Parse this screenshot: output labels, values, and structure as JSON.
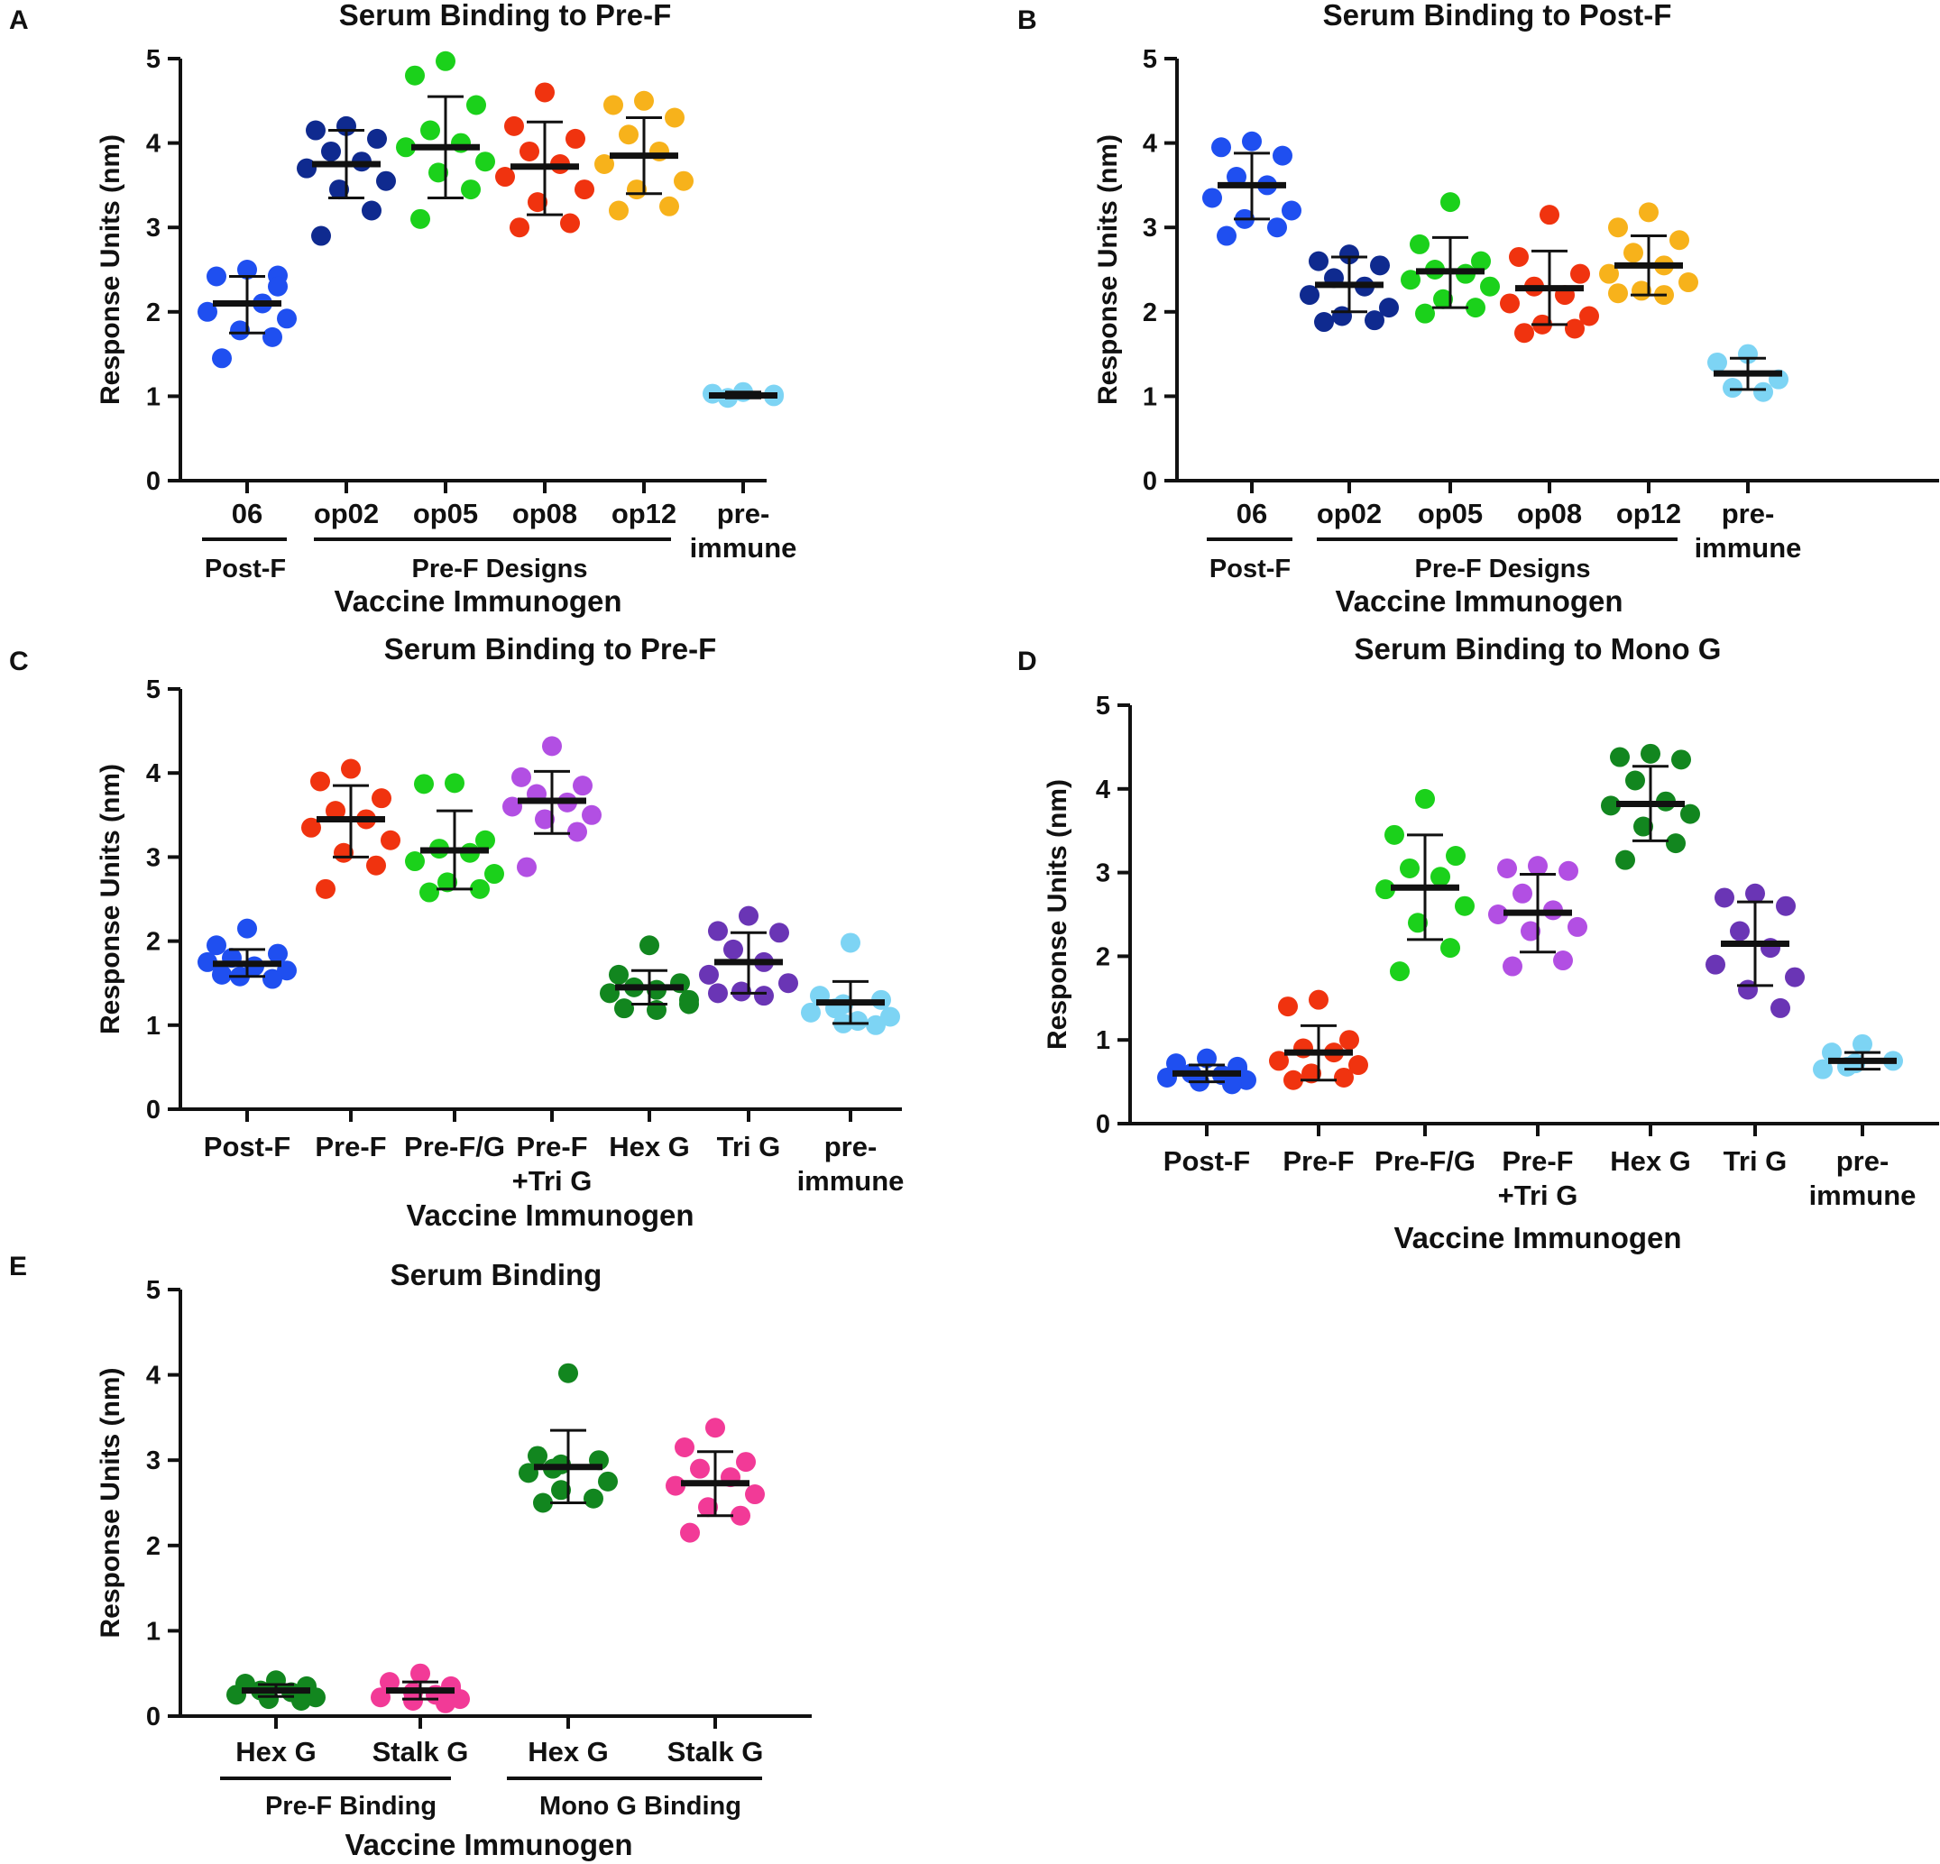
{
  "figure_axis_title": "Vaccine Immunogen",
  "colors": {
    "blue": "#1f4ff0",
    "navy": "#0f2a8f",
    "green": "#1bd11b",
    "red": "#f0330f",
    "orange": "#f7b21b",
    "lightblue": "#7dd4f4",
    "purple": "#b24fe3",
    "darkgreen": "#12861f",
    "darkpurple": "#6a35b5",
    "pink": "#f23a97",
    "axis": "#111111"
  },
  "chart_data": [
    {
      "panel": "A",
      "type": "scatter",
      "title": "Serum Binding to Pre-F",
      "ylabel": "Response Units (nm)",
      "xlabel": "Vaccine Immunogen",
      "ylim": [
        0,
        5
      ],
      "yticks": [
        "0",
        "1",
        "2",
        "3",
        "4",
        "5"
      ],
      "categories": [
        {
          "label": [
            "06"
          ],
          "color": "blue",
          "mean": 2.1,
          "sd_low": 1.75,
          "sd_high": 2.42,
          "points": [
            2.5,
            2.42,
            2.43,
            2.3,
            2.1,
            2.0,
            1.92,
            1.78,
            1.7,
            1.45
          ]
        },
        {
          "label": [
            "op02"
          ],
          "color": "navy",
          "mean": 3.75,
          "sd_low": 3.35,
          "sd_high": 4.15,
          "points": [
            4.2,
            4.15,
            4.05,
            3.9,
            3.78,
            3.7,
            3.55,
            3.45,
            3.2,
            2.9
          ]
        },
        {
          "label": [
            "op05"
          ],
          "color": "green",
          "mean": 3.95,
          "sd_low": 3.35,
          "sd_high": 4.55,
          "points": [
            4.97,
            4.8,
            4.45,
            4.15,
            4.0,
            3.95,
            3.78,
            3.65,
            3.45,
            3.1
          ]
        },
        {
          "label": [
            "op08"
          ],
          "color": "red",
          "mean": 3.72,
          "sd_low": 3.15,
          "sd_high": 4.25,
          "points": [
            4.6,
            4.2,
            4.05,
            3.9,
            3.75,
            3.6,
            3.45,
            3.3,
            3.05,
            3.0
          ]
        },
        {
          "label": [
            "op12"
          ],
          "color": "orange",
          "mean": 3.85,
          "sd_low": 3.4,
          "sd_high": 4.3,
          "points": [
            4.5,
            4.45,
            4.3,
            4.1,
            3.9,
            3.75,
            3.55,
            3.45,
            3.25,
            3.2
          ]
        },
        {
          "label": [
            "pre-",
            "immune"
          ],
          "color": "lightblue",
          "mean": 1.01,
          "sd_low": 0.98,
          "sd_high": 1.05,
          "points": [
            1.05,
            1.03,
            1.02,
            1.0,
            0.98
          ]
        }
      ],
      "groups": [
        {
          "label": "Post-F",
          "from": 0,
          "to": 0
        },
        {
          "label": "Pre-F Designs",
          "from": 1,
          "to": 4
        }
      ]
    },
    {
      "panel": "B",
      "type": "scatter",
      "title": "Serum Binding to Post-F",
      "ylabel": "Response Units (nm)",
      "xlabel": "Vaccine Immunogen",
      "ylim": [
        0,
        5
      ],
      "yticks": [
        "0",
        "1",
        "2",
        "3",
        "4",
        "5"
      ],
      "categories": [
        {
          "label": [
            "06"
          ],
          "color": "blue",
          "mean": 3.5,
          "sd_low": 3.1,
          "sd_high": 3.88,
          "points": [
            4.02,
            3.95,
            3.85,
            3.6,
            3.5,
            3.35,
            3.2,
            3.1,
            3.0,
            2.9
          ]
        },
        {
          "label": [
            "op02"
          ],
          "color": "navy",
          "mean": 2.32,
          "sd_low": 2.0,
          "sd_high": 2.65,
          "points": [
            2.68,
            2.6,
            2.55,
            2.4,
            2.3,
            2.2,
            2.05,
            1.95,
            1.9,
            1.88
          ]
        },
        {
          "label": [
            "op05"
          ],
          "color": "green",
          "mean": 2.48,
          "sd_low": 2.05,
          "sd_high": 2.88,
          "points": [
            3.3,
            2.8,
            2.6,
            2.5,
            2.45,
            2.38,
            2.3,
            2.15,
            2.05,
            1.98
          ]
        },
        {
          "label": [
            "op08"
          ],
          "color": "red",
          "mean": 2.28,
          "sd_low": 1.85,
          "sd_high": 2.72,
          "points": [
            3.15,
            2.65,
            2.45,
            2.3,
            2.2,
            2.1,
            1.95,
            1.85,
            1.8,
            1.75
          ]
        },
        {
          "label": [
            "op12"
          ],
          "color": "orange",
          "mean": 2.55,
          "sd_low": 2.2,
          "sd_high": 2.9,
          "points": [
            3.18,
            3.0,
            2.85,
            2.7,
            2.55,
            2.45,
            2.35,
            2.25,
            2.22,
            2.2
          ]
        },
        {
          "label": [
            "pre-",
            "immune"
          ],
          "color": "lightblue",
          "mean": 1.27,
          "sd_low": 1.08,
          "sd_high": 1.45,
          "points": [
            1.5,
            1.4,
            1.2,
            1.1,
            1.05
          ]
        }
      ],
      "groups": [
        {
          "label": "Post-F",
          "from": 0,
          "to": 0
        },
        {
          "label": "Pre-F Designs",
          "from": 1,
          "to": 4
        }
      ]
    },
    {
      "panel": "C",
      "type": "scatter",
      "title": "Serum Binding to Pre-F",
      "ylabel": "Response Units (nm)",
      "xlabel": "Vaccine Immunogen",
      "ylim": [
        0,
        5
      ],
      "yticks": [
        "0",
        "1",
        "2",
        "3",
        "4",
        "5"
      ],
      "categories": [
        {
          "label": [
            "Post-F"
          ],
          "color": "blue",
          "mean": 1.73,
          "sd_low": 1.58,
          "sd_high": 1.9,
          "points": [
            2.15,
            1.95,
            1.85,
            1.8,
            1.75,
            1.7,
            1.65,
            1.6,
            1.58,
            1.55
          ]
        },
        {
          "label": [
            "Pre-F"
          ],
          "color": "red",
          "mean": 3.45,
          "sd_low": 3.0,
          "sd_high": 3.85,
          "points": [
            4.05,
            3.9,
            3.7,
            3.55,
            3.45,
            3.35,
            3.2,
            3.05,
            2.9,
            2.62
          ]
        },
        {
          "label": [
            "Pre-F/G"
          ],
          "color": "green",
          "mean": 3.08,
          "sd_low": 2.62,
          "sd_high": 3.55,
          "points": [
            3.88,
            3.87,
            3.2,
            3.1,
            3.05,
            2.95,
            2.8,
            2.7,
            2.62,
            2.58
          ]
        },
        {
          "label": [
            "Pre-F",
            "+Tri G"
          ],
          "color": "purple",
          "mean": 3.67,
          "sd_low": 3.28,
          "sd_high": 4.02,
          "points": [
            4.32,
            3.95,
            3.85,
            3.75,
            3.65,
            3.6,
            3.5,
            3.45,
            3.3,
            2.88
          ]
        },
        {
          "label": [
            "Hex G"
          ],
          "color": "darkgreen",
          "mean": 1.45,
          "sd_low": 1.25,
          "sd_high": 1.65,
          "points": [
            1.95,
            1.6,
            1.5,
            1.45,
            1.42,
            1.38,
            1.3,
            1.25,
            1.2,
            1.18
          ]
        },
        {
          "label": [
            "Tri G"
          ],
          "color": "darkpurple",
          "mean": 1.75,
          "sd_low": 1.38,
          "sd_high": 2.1,
          "points": [
            2.3,
            2.12,
            2.1,
            1.9,
            1.75,
            1.6,
            1.5,
            1.4,
            1.38,
            1.35
          ]
        },
        {
          "label": [
            "pre-",
            "immune"
          ],
          "color": "lightblue",
          "mean": 1.27,
          "sd_low": 1.02,
          "sd_high": 1.52,
          "points": [
            1.98,
            1.35,
            1.3,
            1.25,
            1.2,
            1.15,
            1.1,
            1.05,
            1.02,
            1.0
          ]
        }
      ],
      "groups": []
    },
    {
      "panel": "D",
      "type": "scatter",
      "title": "Serum Binding to Mono G",
      "ylabel": "Response Units (nm)",
      "xlabel": "Vaccine Immunogen",
      "ylim": [
        0,
        5
      ],
      "yticks": [
        "0",
        "1",
        "2",
        "3",
        "4",
        "5"
      ],
      "categories": [
        {
          "label": [
            "Post-F"
          ],
          "color": "blue",
          "mean": 0.6,
          "sd_low": 0.5,
          "sd_high": 0.7,
          "points": [
            0.78,
            0.72,
            0.68,
            0.65,
            0.6,
            0.58,
            0.55,
            0.52,
            0.5,
            0.47
          ]
        },
        {
          "label": [
            "Pre-F"
          ],
          "color": "red",
          "mean": 0.85,
          "sd_low": 0.52,
          "sd_high": 1.17,
          "points": [
            1.48,
            1.4,
            1.0,
            0.9,
            0.85,
            0.75,
            0.7,
            0.6,
            0.55,
            0.52
          ]
        },
        {
          "label": [
            "Pre-F/G"
          ],
          "color": "green",
          "mean": 2.82,
          "sd_low": 2.2,
          "sd_high": 3.45,
          "points": [
            3.88,
            3.45,
            3.2,
            3.05,
            2.95,
            2.8,
            2.6,
            2.4,
            2.1,
            1.82
          ]
        },
        {
          "label": [
            "Pre-F",
            "+Tri G"
          ],
          "color": "purple",
          "mean": 2.52,
          "sd_low": 2.05,
          "sd_high": 2.98,
          "points": [
            3.08,
            3.05,
            3.02,
            2.75,
            2.55,
            2.5,
            2.35,
            2.3,
            1.95,
            1.88
          ]
        },
        {
          "label": [
            "Hex G"
          ],
          "color": "darkgreen",
          "mean": 3.82,
          "sd_low": 3.38,
          "sd_high": 4.27,
          "points": [
            4.42,
            4.38,
            4.35,
            4.1,
            3.85,
            3.8,
            3.7,
            3.55,
            3.35,
            3.15
          ]
        },
        {
          "label": [
            "Tri G"
          ],
          "color": "darkpurple",
          "mean": 2.15,
          "sd_low": 1.65,
          "sd_high": 2.65,
          "points": [
            2.75,
            2.7,
            2.6,
            2.3,
            2.1,
            1.9,
            1.75,
            1.6,
            1.38
          ]
        },
        {
          "label": [
            "pre-",
            "immune"
          ],
          "color": "lightblue",
          "mean": 0.75,
          "sd_low": 0.65,
          "sd_high": 0.85,
          "points": [
            0.95,
            0.85,
            0.75,
            0.72,
            0.68,
            0.65
          ]
        }
      ],
      "groups": []
    },
    {
      "panel": "E",
      "type": "scatter",
      "title": "Serum Binding",
      "ylabel": "Response Units (nm)",
      "xlabel": "Vaccine Immunogen",
      "ylim": [
        0,
        5
      ],
      "yticks": [
        "0",
        "1",
        "2",
        "3",
        "4",
        "5"
      ],
      "categories": [
        {
          "label": [
            "Hex G"
          ],
          "color": "darkgreen",
          "mean": 0.3,
          "sd_low": 0.23,
          "sd_high": 0.37,
          "points": [
            0.42,
            0.38,
            0.35,
            0.32,
            0.3,
            0.28,
            0.25,
            0.22,
            0.2,
            0.18
          ]
        },
        {
          "label": [
            "Stalk G"
          ],
          "color": "pink",
          "mean": 0.3,
          "sd_low": 0.2,
          "sd_high": 0.4,
          "points": [
            0.5,
            0.4,
            0.35,
            0.32,
            0.28,
            0.25,
            0.22,
            0.2,
            0.18,
            0.15
          ]
        },
        {
          "label": [
            "Hex G"
          ],
          "color": "darkgreen",
          "mean": 2.92,
          "sd_low": 2.5,
          "sd_high": 3.35,
          "points": [
            4.02,
            3.05,
            3.0,
            2.95,
            2.9,
            2.85,
            2.75,
            2.65,
            2.55,
            2.5
          ]
        },
        {
          "label": [
            "Stalk G"
          ],
          "color": "pink",
          "mean": 2.73,
          "sd_low": 2.35,
          "sd_high": 3.1,
          "points": [
            3.38,
            3.15,
            2.98,
            2.9,
            2.8,
            2.7,
            2.6,
            2.45,
            2.35,
            2.15
          ]
        }
      ],
      "groups": [
        {
          "label": "Pre-F Binding",
          "from": 0,
          "to": 1
        },
        {
          "label": "Mono G Binding",
          "from": 2,
          "to": 3
        }
      ]
    }
  ]
}
